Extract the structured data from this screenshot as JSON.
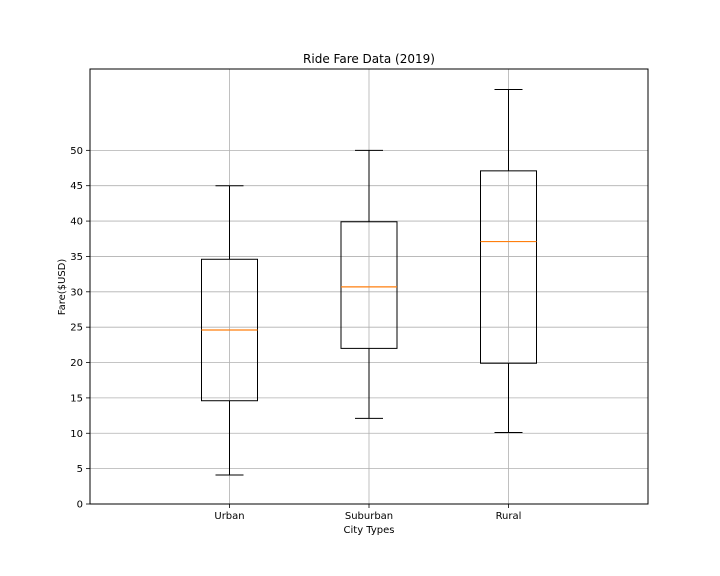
{
  "chart_data": {
    "type": "boxplot",
    "title": "Ride Fare Data (2019)",
    "xlabel": "City Types",
    "ylabel": "Fare($USD)",
    "ylim": [
      0,
      61.5
    ],
    "yticks": [
      0,
      5,
      10,
      15,
      20,
      25,
      30,
      35,
      40,
      45,
      50
    ],
    "grid": true,
    "categories": [
      "Urban",
      "Suburban",
      "Rural"
    ],
    "boxes": [
      {
        "category": "Urban",
        "whisker_low": 4.1,
        "q1": 14.6,
        "median": 24.6,
        "q3": 34.6,
        "whisker_high": 45.0
      },
      {
        "category": "Suburban",
        "whisker_low": 12.1,
        "q1": 22.0,
        "median": 30.7,
        "q3": 39.9,
        "whisker_high": 50.0
      },
      {
        "category": "Rural",
        "whisker_low": 10.1,
        "q1": 19.9,
        "median": 37.1,
        "q3": 47.1,
        "whisker_high": 58.6
      }
    ],
    "colors": {
      "box": "#000000",
      "median": "#ff7f0e",
      "grid": "#b0b0b0"
    }
  }
}
